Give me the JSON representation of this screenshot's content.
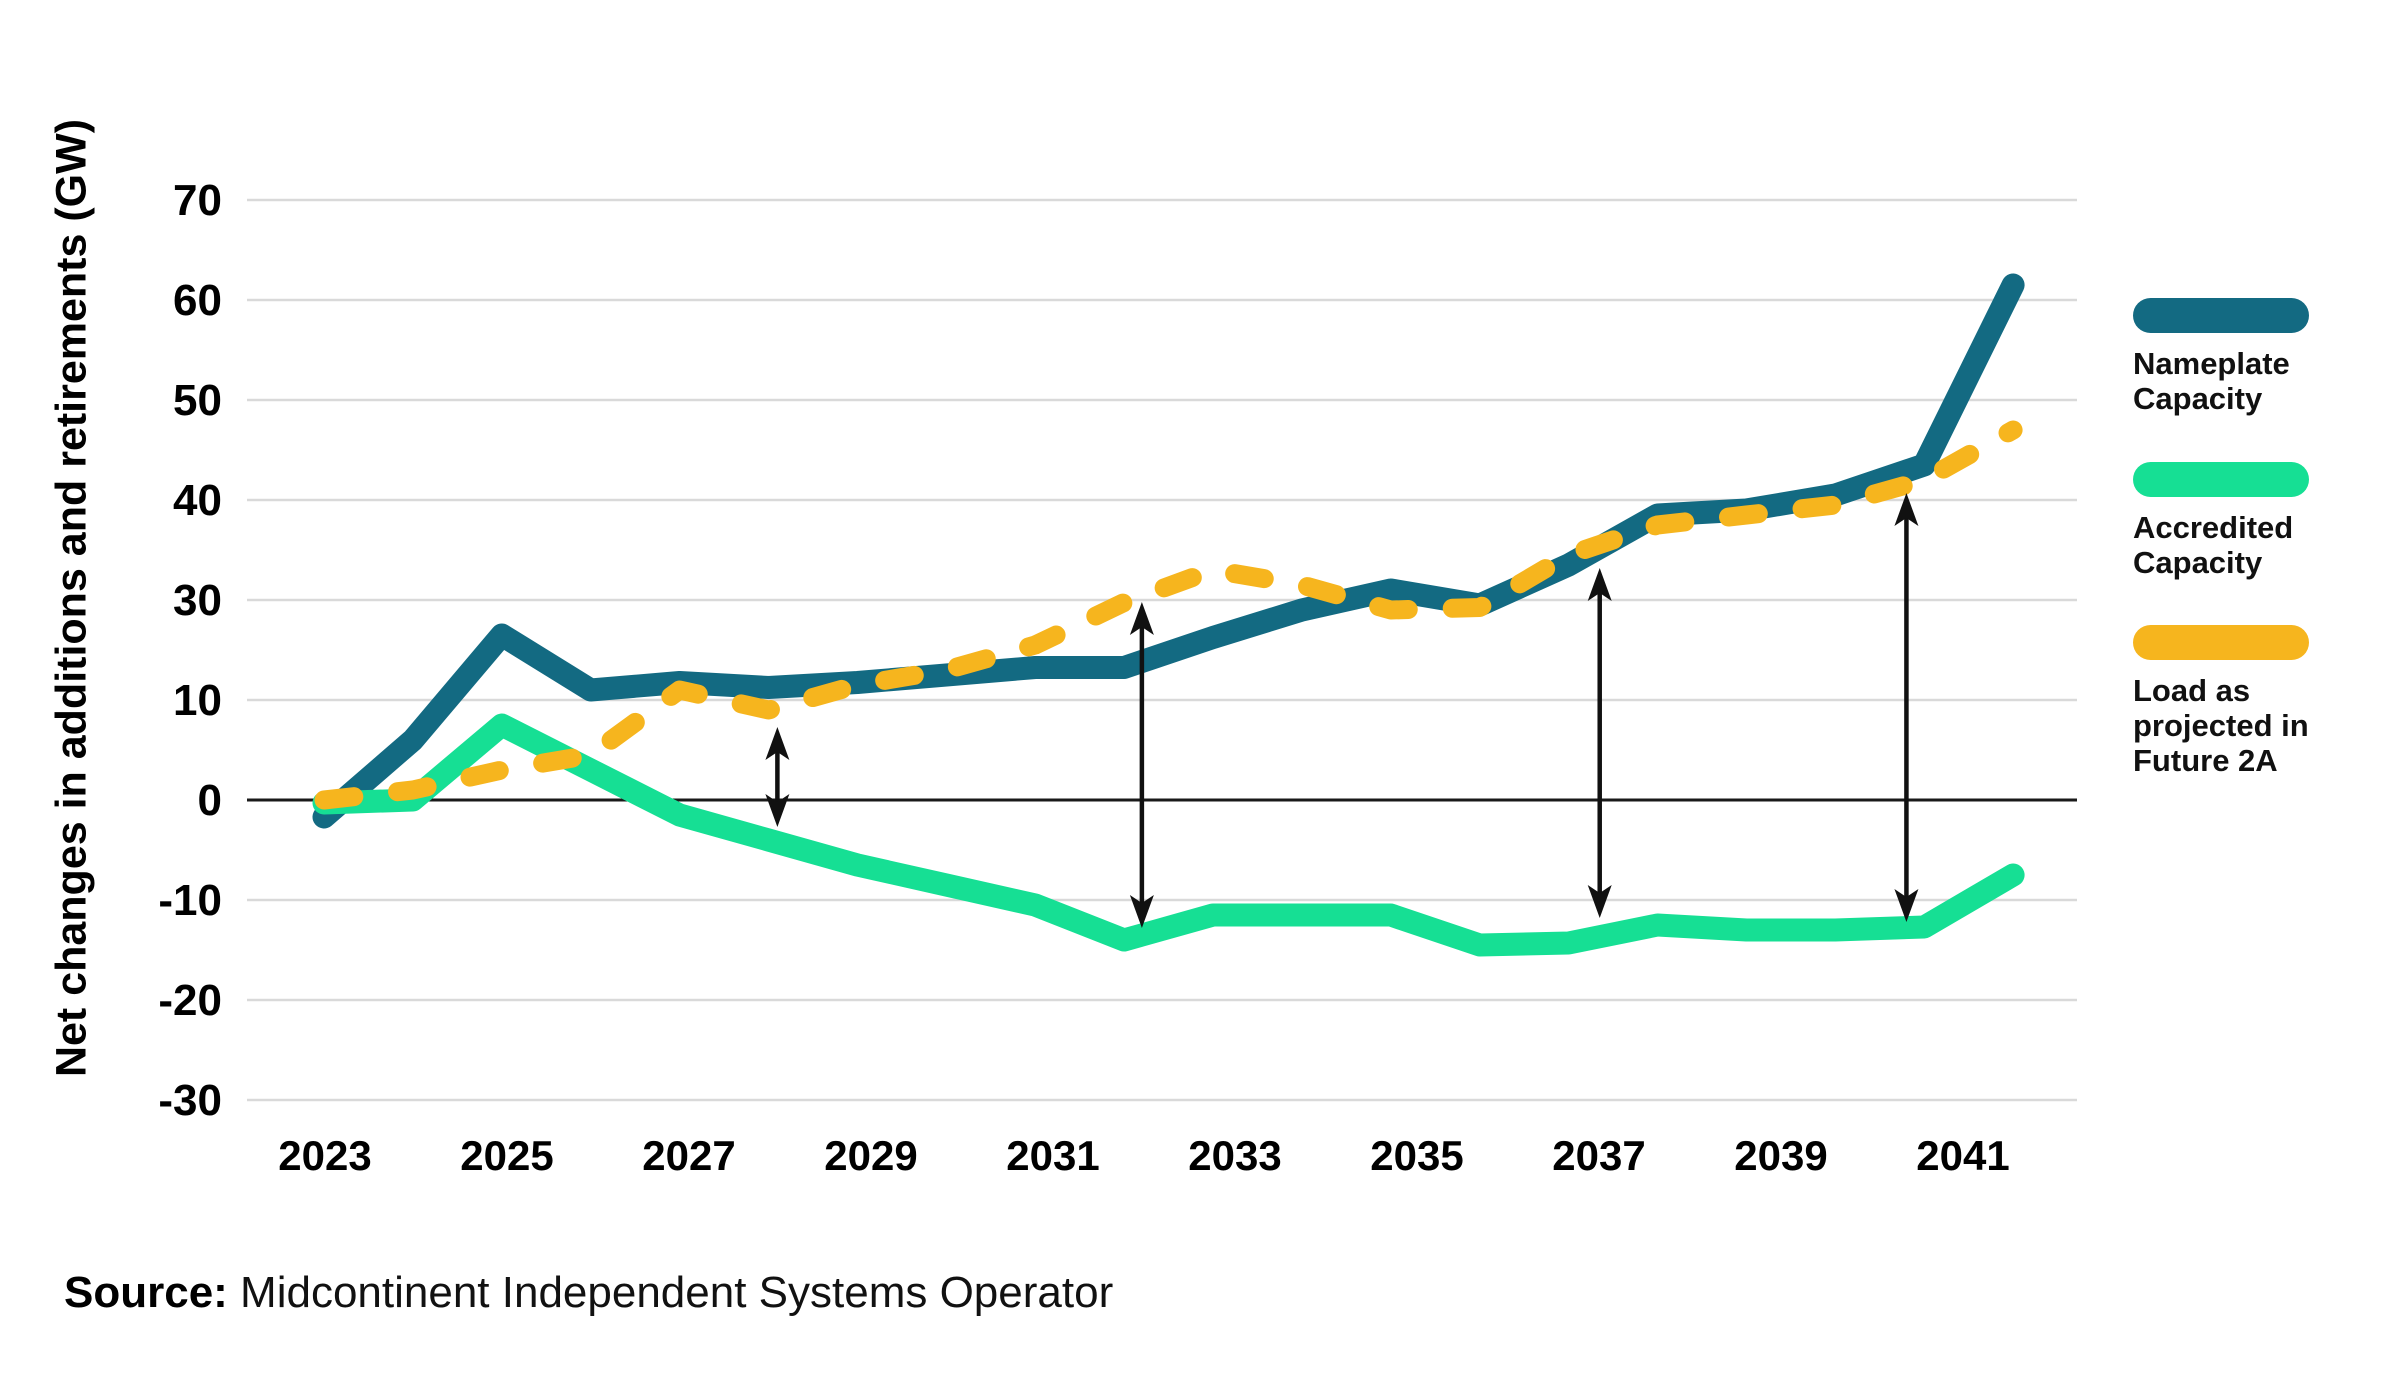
{
  "axis": {
    "y_title": "Net changes in additions and retirements (GW)"
  },
  "legend": {
    "items": [
      {
        "label": "Nameplate\nCapacity",
        "color": "#136a82"
      },
      {
        "label": "Accredited\nCapacity",
        "color": "#16df94"
      },
      {
        "label": "Load as\nprojected in\nFuture 2A",
        "color": "#f6b51e"
      }
    ]
  },
  "source": {
    "label": "Source:",
    "text": " Midcontinent Independent Systems Operator"
  },
  "chart_data": {
    "type": "line",
    "title": "",
    "ylabel": "Net changes in additions and retirements (GW)",
    "xlabel": "",
    "grid": true,
    "legend_position": "right",
    "x_years": [
      2023,
      2024,
      2025,
      2026,
      2027,
      2028,
      2029,
      2030,
      2031,
      2032,
      2033,
      2034,
      2035,
      2036,
      2037,
      2038,
      2039,
      2040,
      2041,
      2042
    ],
    "x_tick_labels": [
      "2023",
      "2025",
      "2027",
      "2029",
      "2031",
      "2033",
      "2035",
      "2037",
      "2039",
      "2041"
    ],
    "y_tick_labels": [
      "70",
      "60",
      "50",
      "40",
      "30",
      "10",
      "0",
      "-10",
      "-20",
      "-30"
    ],
    "y_axis_note": "gridlines are evenly spaced; the source chart labels the tick between 30 and 0 as 10",
    "zero_line": true,
    "series": [
      {
        "name": "Nameplate Capacity",
        "color": "#136a82",
        "line_style": "solid",
        "values": [
          -1.7,
          6,
          23,
          12,
          13.5,
          12.5,
          13.5,
          15,
          16.5,
          16.5,
          22.5,
          28,
          31,
          29,
          33.5,
          38.5,
          39,
          40.5,
          43.5,
          61.5
        ]
      },
      {
        "name": "Accredited Capacity",
        "color": "#16df94",
        "line_style": "solid",
        "values": [
          -0.3,
          0,
          7.5,
          3,
          -1.5,
          -4,
          -6.5,
          -8.5,
          -10.5,
          -14,
          -11.5,
          -11.5,
          -11.5,
          -14.5,
          -14.3,
          -12.5,
          -13,
          -13,
          -12.7,
          -7.5
        ]
      },
      {
        "name": "Load as projected in Future 2A",
        "color": "#f6b51e",
        "line_style": "dashed",
        "values": [
          0,
          1,
          3,
          4.5,
          12,
          9,
          13,
          16,
          21,
          29.5,
          33,
          31.5,
          28,
          28.5,
          34.5,
          37.5,
          38.5,
          39.5,
          42,
          47
        ]
      }
    ],
    "gap_arrows": [
      {
        "year": 2028.1,
        "top_gw": 7.3,
        "bottom_gw": -2.7
      },
      {
        "year": 2032.2,
        "top_gw": 29.6,
        "bottom_gw": -12.8
      },
      {
        "year": 2037.35,
        "top_gw": 33.2,
        "bottom_gw": -11.8
      },
      {
        "year": 2040.8,
        "top_gw": 40.7,
        "bottom_gw": -12.2
      }
    ]
  }
}
